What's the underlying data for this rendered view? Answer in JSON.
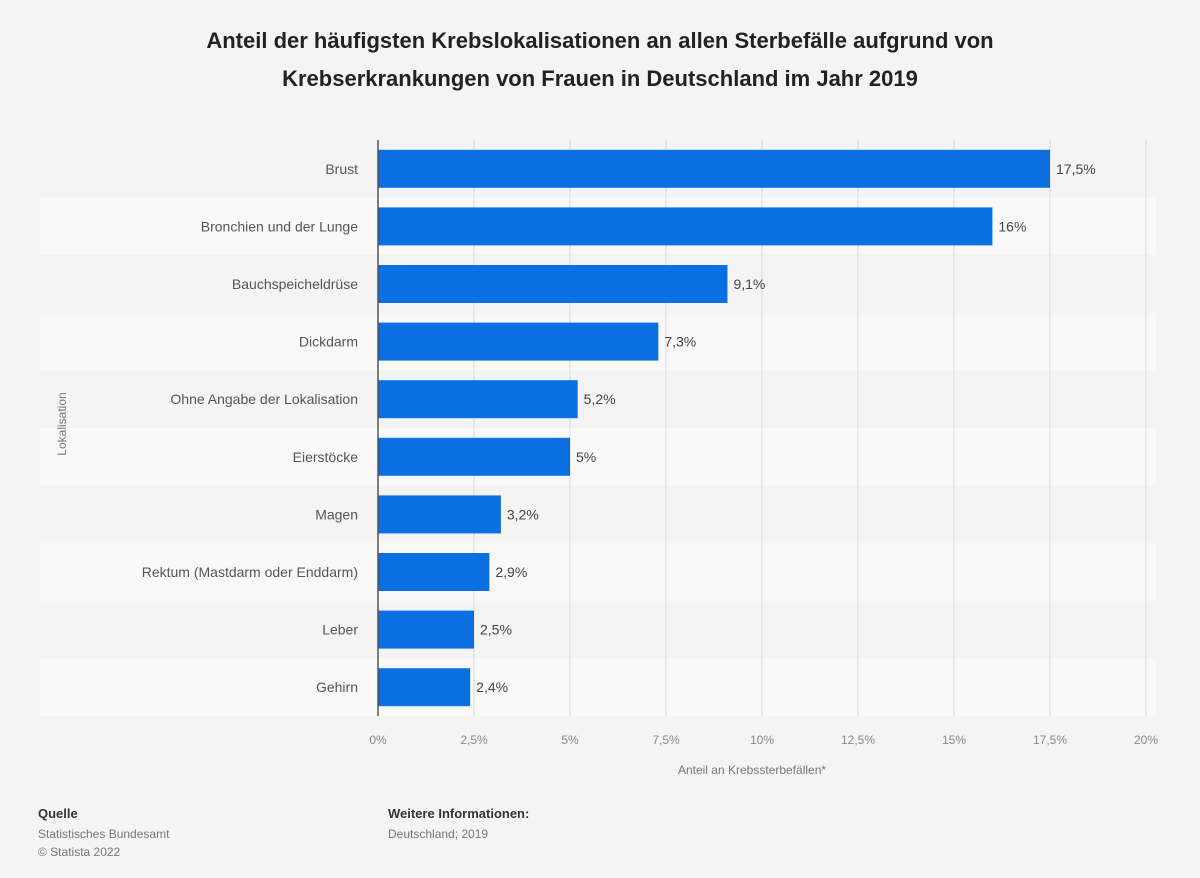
{
  "chart_data": {
    "type": "bar",
    "orientation": "horizontal",
    "title": "Anteil der häufigsten Krebslokalisationen an allen Sterbefälle aufgrund von Krebserkrankungen von Frauen in Deutschland im Jahr 2019",
    "title_lines": [
      "Anteil der häufigsten Krebslokalisationen an allen Sterbefälle aufgrund von",
      "Krebserkrankungen von Frauen in Deutschland im Jahr 2019"
    ],
    "categories": [
      "Brust",
      "Bronchien und der Lunge",
      "Bauchspeicheldrüse",
      "Dickdarm",
      "Ohne Angabe der Lokalisation",
      "Eierstöcke",
      "Magen",
      "Rektum (Mastdarm oder Enddarm)",
      "Leber",
      "Gehirn"
    ],
    "values": [
      17.5,
      16,
      9.1,
      7.3,
      5.2,
      5,
      3.2,
      2.9,
      2.5,
      2.4
    ],
    "value_labels": [
      "17,5%",
      "16%",
      "9,1%",
      "7,3%",
      "5,2%",
      "5%",
      "3,2%",
      "2,9%",
      "2,5%",
      "2,4%"
    ],
    "xlim": [
      0,
      20
    ],
    "xticks": [
      0,
      2.5,
      5,
      7.5,
      10,
      12.5,
      15,
      17.5,
      20
    ],
    "xtick_labels": [
      "0%",
      "2,5%",
      "5%",
      "7,5%",
      "10%",
      "12,5%",
      "15%",
      "17,5%",
      "20%"
    ],
    "xlabel": "Anteil an Krebssterbefällen*",
    "ylabel": "Lokalisation",
    "grid": true,
    "bar_color": "#0a6fe0"
  },
  "footer": {
    "source_heading": "Quelle",
    "source_lines": [
      "Statistisches Bundesamt",
      "© Statista 2022"
    ],
    "info_heading": "Weitere Informationen:",
    "info_lines": [
      "Deutschland; 2019"
    ]
  }
}
